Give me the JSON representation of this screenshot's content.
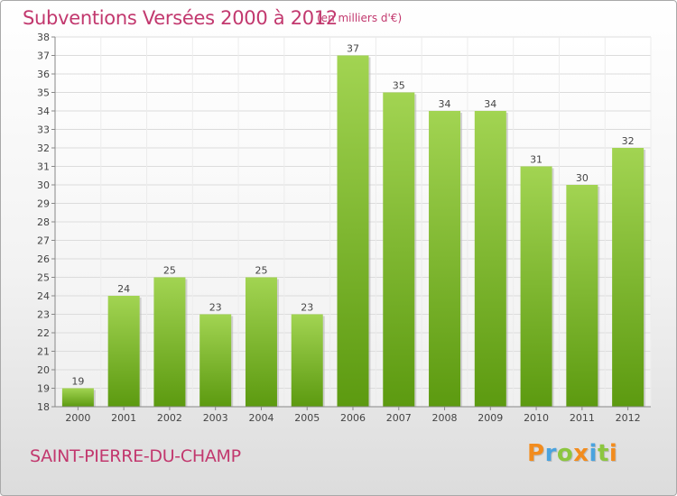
{
  "header": {
    "title": "Subventions Versées 2000 à 2012",
    "subtitle": "(en milliers d'€)"
  },
  "place": "SAINT-PIERRE-DU-CHAMP",
  "brand": {
    "name": "Proxiti",
    "letters": [
      {
        "ch": "P",
        "color": "#f28c1e"
      },
      {
        "ch": "r",
        "color": "#4aa3df"
      },
      {
        "ch": "o",
        "color": "#8cc63f"
      },
      {
        "ch": "x",
        "color": "#f28c1e"
      },
      {
        "ch": "i",
        "color": "#4aa3df"
      },
      {
        "ch": "t",
        "color": "#8cc63f"
      },
      {
        "ch": "i",
        "color": "#f28c1e"
      }
    ]
  },
  "colors": {
    "accent": "#c2386e",
    "bar_light": "#9fd24e",
    "bar_dark": "#5e9a12"
  },
  "chart_data": {
    "type": "bar",
    "title": "Subventions Versées 2000 à 2012",
    "subtitle": "(en milliers d'€)",
    "categories": [
      "2000",
      "2001",
      "2002",
      "2003",
      "2004",
      "2005",
      "2006",
      "2007",
      "2008",
      "2009",
      "2010",
      "2011",
      "2012"
    ],
    "values": [
      19,
      24,
      25,
      23,
      25,
      23,
      37,
      35,
      34,
      34,
      31,
      30,
      32
    ],
    "ylim": [
      18,
      38
    ],
    "yticks": [
      18,
      19,
      20,
      21,
      22,
      23,
      24,
      25,
      26,
      27,
      28,
      29,
      30,
      31,
      32,
      33,
      34,
      35,
      36,
      37,
      38
    ],
    "grid": true,
    "legend": "none"
  }
}
